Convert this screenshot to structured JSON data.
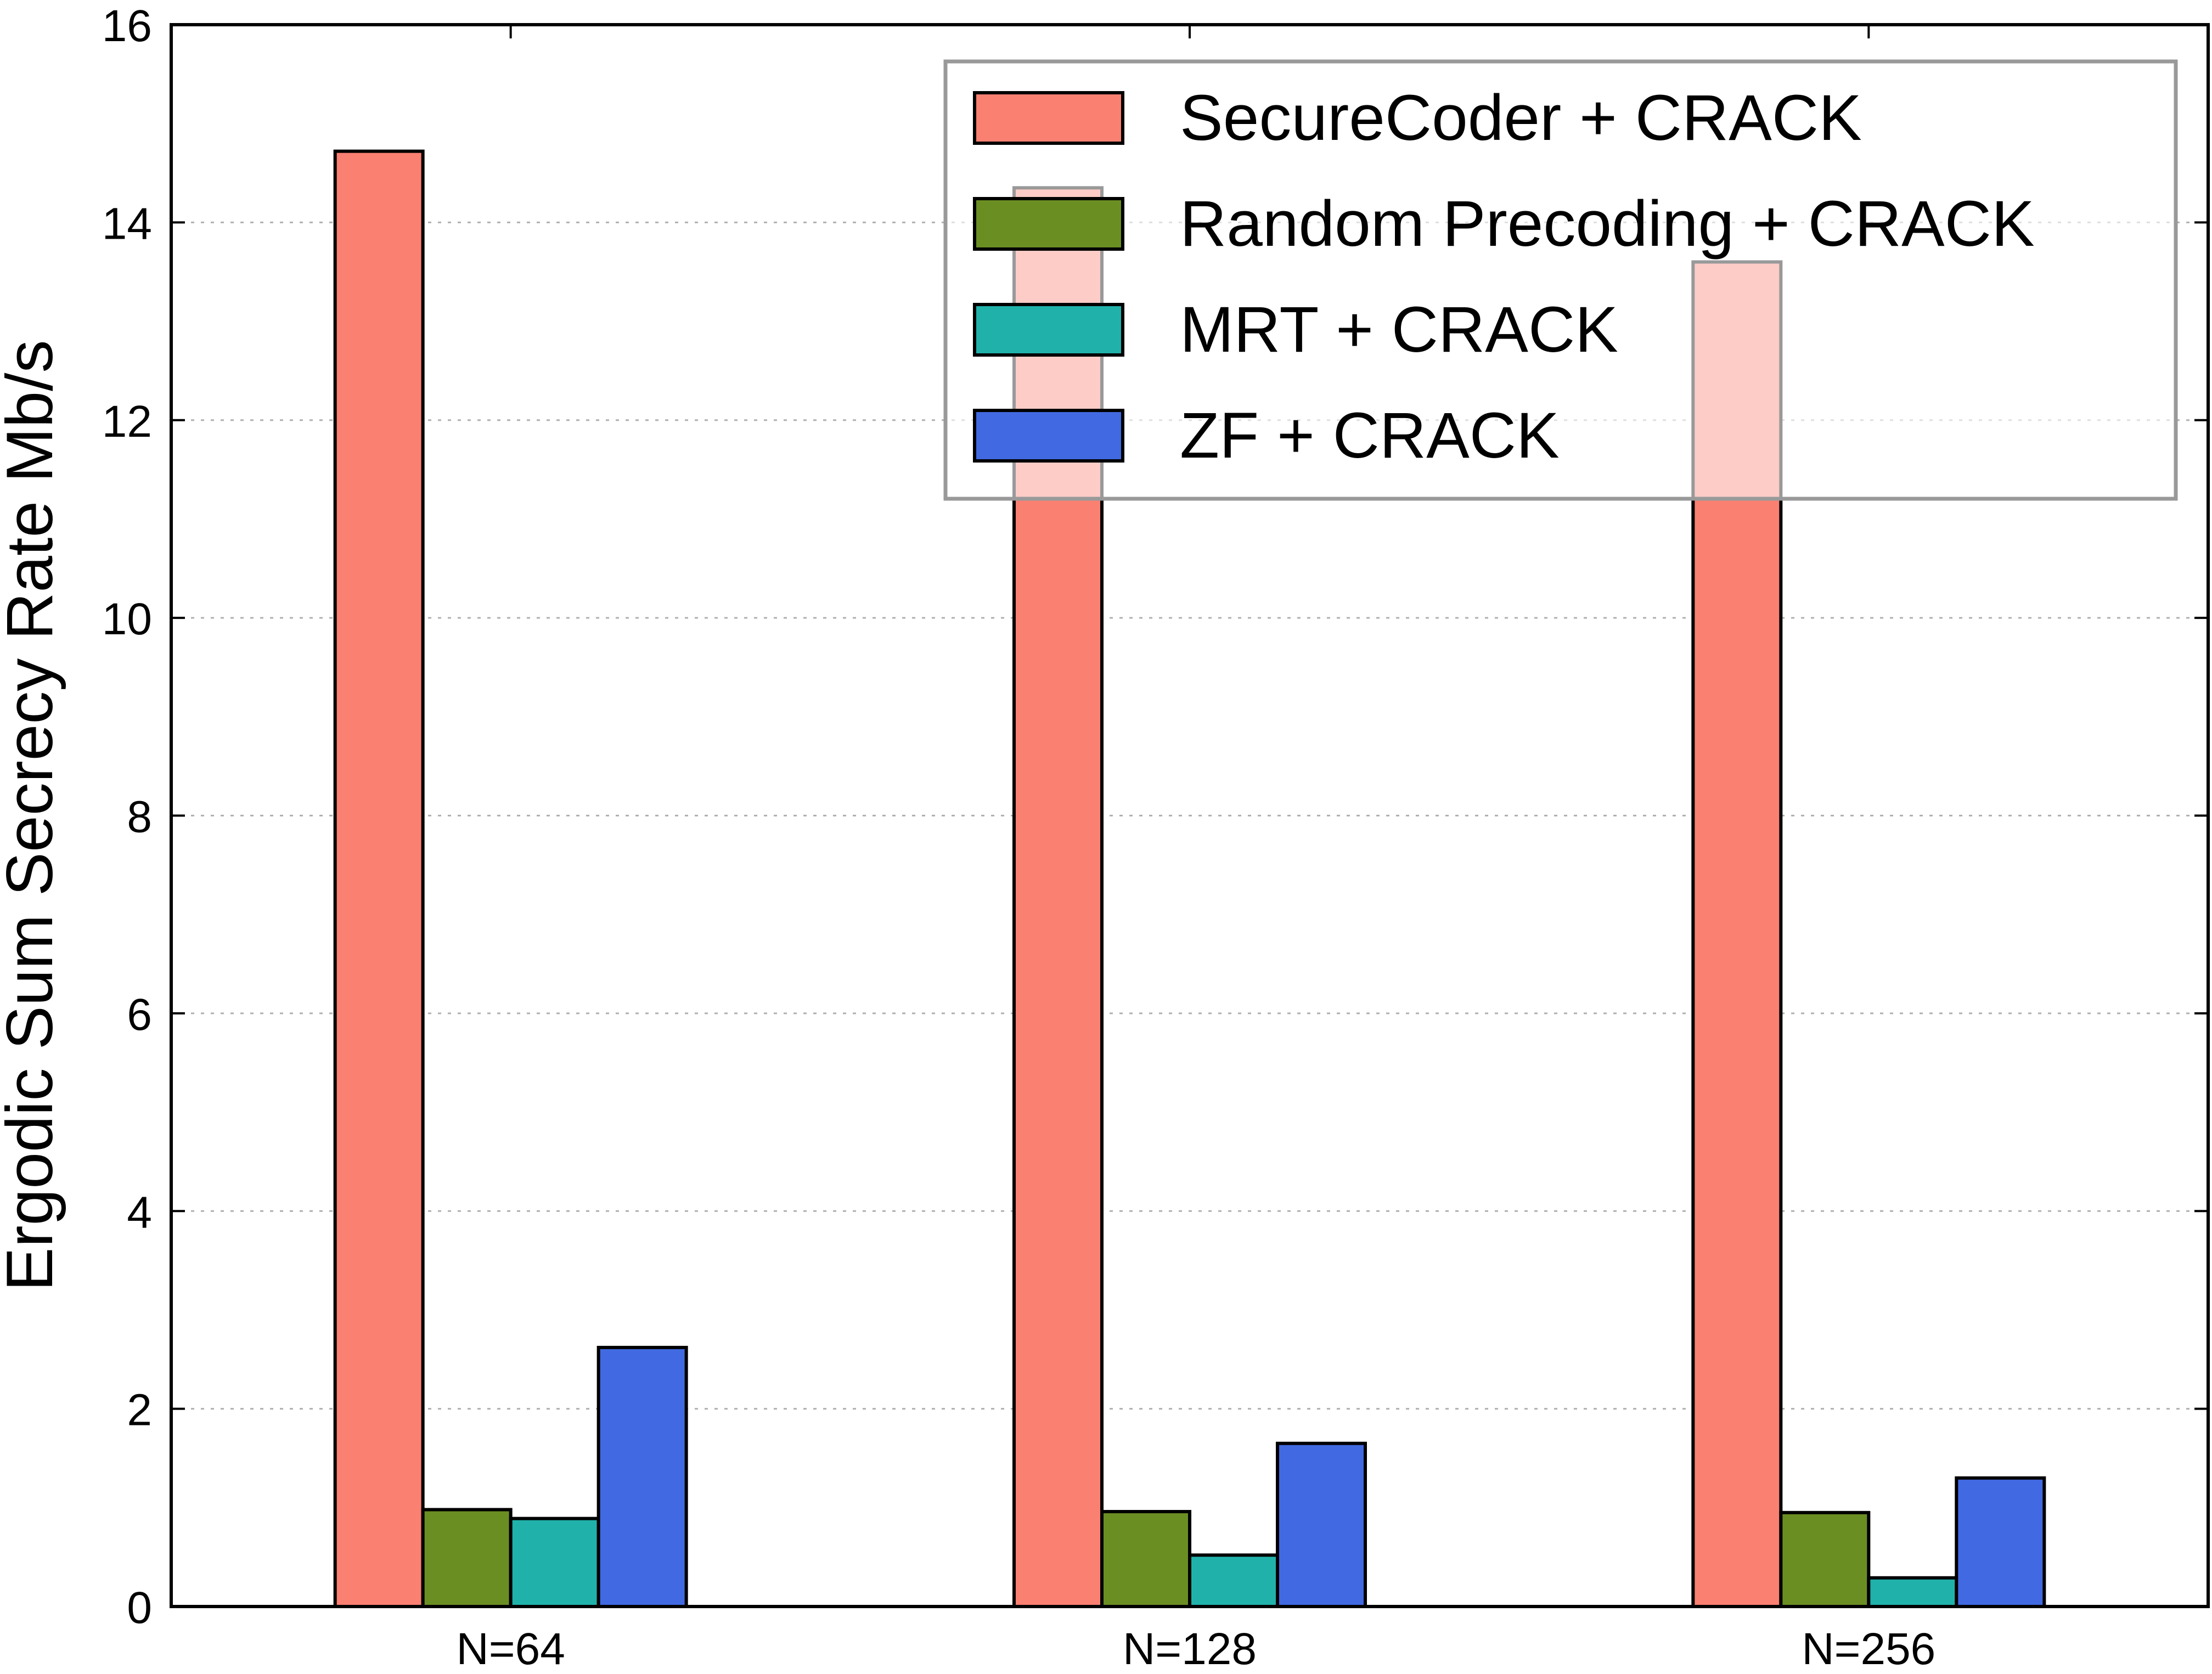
{
  "chart_data": {
    "type": "bar",
    "title": "",
    "xlabel": "",
    "ylabel": "Ergodic Sum Secrecy Rate Mb/s",
    "ylim": [
      0,
      16
    ],
    "yticks": [
      0,
      2,
      4,
      6,
      8,
      10,
      12,
      14,
      16
    ],
    "grid": "horizontal dotted",
    "legend_position": "upper right",
    "categories": [
      "N=64",
      "N=128",
      "N=256"
    ],
    "series": [
      {
        "name": "SecureCoder + CRACK",
        "color": "#fa8072",
        "values": [
          14.72,
          14.35,
          13.6
        ]
      },
      {
        "name": "Random Precoding + CRACK",
        "color": "#6b8e23",
        "values": [
          0.98,
          0.96,
          0.95
        ]
      },
      {
        "name": "MRT + CRACK",
        "color": "#20b2aa",
        "values": [
          0.89,
          0.52,
          0.29
        ]
      },
      {
        "name": "ZF + CRACK",
        "color": "#4169e1",
        "values": [
          2.62,
          1.65,
          1.3
        ]
      }
    ]
  }
}
